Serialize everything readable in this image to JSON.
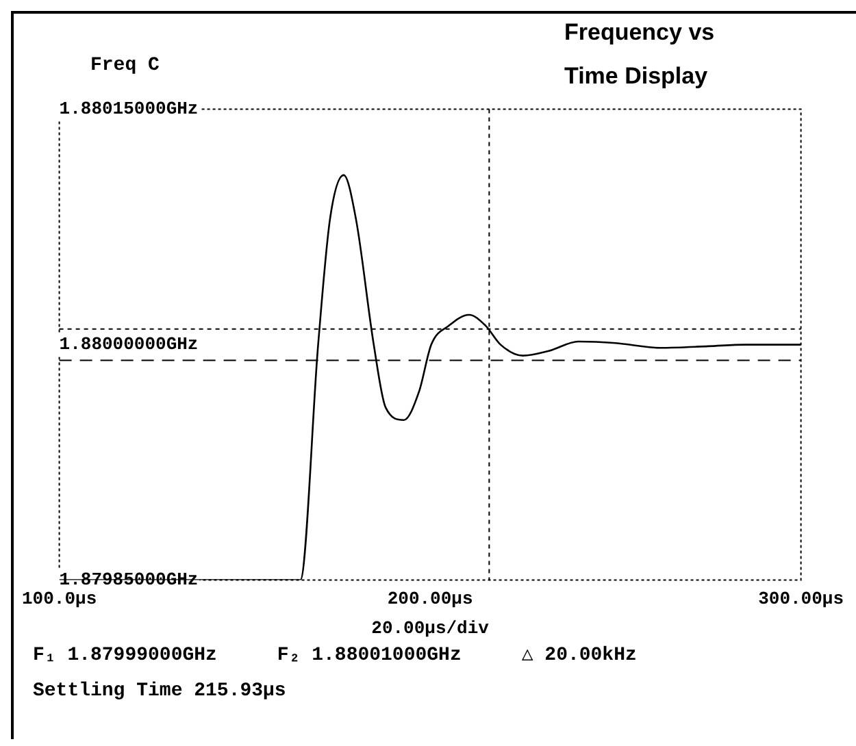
{
  "chart_data": {
    "type": "line",
    "title": "Frequency vs Time Display",
    "subtitle": "Freq C",
    "xlabel": "20.00µs/div",
    "x": [
      100,
      165,
      169.8,
      173,
      176.7,
      180,
      184.8,
      188,
      192.9,
      197,
      200.3,
      205,
      210.5,
      215,
      219,
      225,
      232,
      240,
      250,
      262,
      275,
      285,
      300
    ],
    "series": [
      {
        "color": "#000000",
        "values": [
          1.87985,
          1.87985,
          1.88,
          1.88008,
          1.880108,
          1.88008,
          1.88,
          1.87996,
          1.879952,
          1.87997,
          1.88,
          1.880012,
          1.880019,
          1.880012,
          1.88,
          1.879993,
          1.879996,
          1.880002,
          1.880001,
          1.879998,
          1.879999,
          1.88,
          1.88
        ]
      }
    ],
    "xlim": [
      100,
      300
    ],
    "xticks": [
      {
        "value": 100,
        "label": "100.0µs"
      },
      {
        "value": 200,
        "label": "200.00µs"
      },
      {
        "value": 300,
        "label": "300.00µs"
      }
    ],
    "ylim": [
      1.87985,
      1.88015
    ],
    "yticks": [
      {
        "value": 1.87985,
        "label": "1.87985000GHz"
      },
      {
        "value": 1.88,
        "label": "1.88000000GHz"
      },
      {
        "value": 1.88015,
        "label": "1.88015000GHz"
      }
    ],
    "ref_lines": [
      {
        "axis": "y",
        "value": 1.88001,
        "line_style": "dotted",
        "color": "#000000"
      },
      {
        "axis": "y",
        "value": 1.87999,
        "line_style": "dashed",
        "color": "#000000"
      },
      {
        "axis": "x",
        "value": 215.93,
        "line_style": "dotted",
        "color": "#000000"
      }
    ],
    "annotations": [
      "F₁ 1.87999000GHz",
      "F₂ 1.88001000GHz",
      "△ 20.00kHz",
      "Settling Time 215.93µs"
    ],
    "grid": false,
    "legend": false,
    "marker": "none",
    "line_style": "solid"
  }
}
